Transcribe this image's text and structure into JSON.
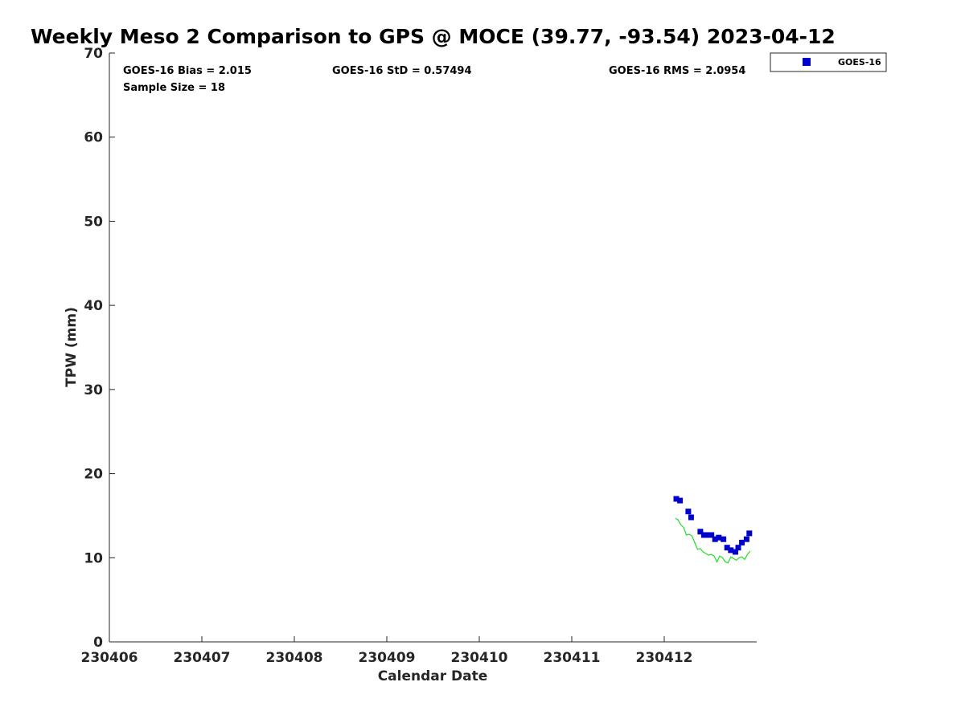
{
  "chart_data": {
    "type": "scatter",
    "title": "Weekly Meso 2 Comparison to GPS @ MOCE (39.77, -93.54) 2023-04-12",
    "xlabel": "Calendar Date",
    "ylabel": "TPW (mm)",
    "xlim": [
      230406,
      230413
    ],
    "ylim": [
      0,
      70
    ],
    "x_ticks": [
      "230406",
      "230407",
      "230408",
      "230409",
      "230410",
      "230411",
      "230412"
    ],
    "y_ticks": [
      "0",
      "10",
      "20",
      "30",
      "40",
      "50",
      "60",
      "70"
    ],
    "grid": false,
    "legend_position": "top-right-outside",
    "stats": {
      "bias": "GOES-16 Bias = 2.015",
      "std": "GOES-16 StD = 0.57494",
      "rms": "GOES-16 RMS = 2.0954",
      "sample": "Sample Size = 18"
    },
    "colors": {
      "goes": "#0000cc",
      "gps": "#22dd22"
    },
    "series": [
      {
        "name": "GOES-16",
        "style": "square-markers",
        "x": [
          230412.13,
          230412.17,
          230412.26,
          230412.29,
          230412.39,
          230412.43,
          230412.47,
          230412.51,
          230412.55,
          230412.59,
          230412.64,
          230412.68,
          230412.72,
          230412.77,
          230412.8,
          230412.84,
          230412.89,
          230412.92
        ],
        "y": [
          17.0,
          16.8,
          15.5,
          14.8,
          13.1,
          12.7,
          12.7,
          12.7,
          12.2,
          12.4,
          12.2,
          11.2,
          10.9,
          10.7,
          11.2,
          11.8,
          12.2,
          12.9
        ]
      },
      {
        "style": "line",
        "x": [
          230412.12,
          230412.15,
          230412.18,
          230412.21,
          230412.24,
          230412.27,
          230412.3,
          230412.33,
          230412.36,
          230412.39,
          230412.42,
          230412.45,
          230412.48,
          230412.51,
          230412.54,
          230412.57,
          230412.6,
          230412.63,
          230412.66,
          230412.69,
          230412.72,
          230412.75,
          230412.78,
          230412.81,
          230412.84,
          230412.87,
          230412.9,
          230412.93
        ],
        "y": [
          14.7,
          14.5,
          13.9,
          13.6,
          12.7,
          12.8,
          12.6,
          11.8,
          11.0,
          11.1,
          10.7,
          10.5,
          10.3,
          10.4,
          10.2,
          9.5,
          10.2,
          10.0,
          9.5,
          9.4,
          10.1,
          9.9,
          9.7,
          10.0,
          10.1,
          9.8,
          10.4,
          10.8
        ]
      }
    ]
  }
}
